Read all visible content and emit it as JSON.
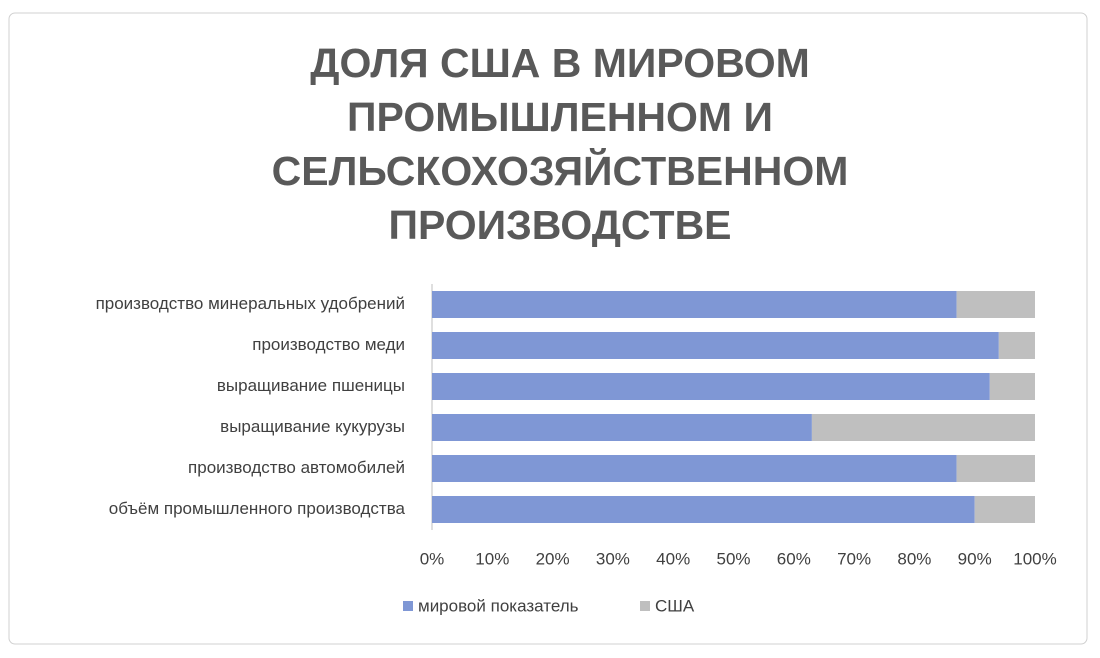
{
  "chart_data": {
    "type": "stacked_percent_barh",
    "title": "ДОЛЯ США В МИРОВОМ ПРОМЫШЛЕННОМ И СЕЛЬСКОХОЗЯЙСТВЕННОМ ПРОИЗВОДСТВЕ",
    "categories": [
      "производство минеральных удобрений",
      "производство меди",
      "выращивание пшеницы",
      "выращивание кукурузы",
      "производство автомобилей",
      "объём промышленного производства"
    ],
    "series": [
      {
        "name": "мировой показатель",
        "color": "#7f97d5",
        "values": [
          87,
          94,
          92.5,
          63,
          87,
          90
        ]
      },
      {
        "name": "США",
        "color": "#bfbfbf",
        "values": [
          13,
          6,
          7.5,
          37,
          13,
          10
        ]
      }
    ],
    "xlim": [
      0,
      100
    ],
    "xticks": [
      {
        "value": 0,
        "label": "0%"
      },
      {
        "value": 10,
        "label": "10%"
      },
      {
        "value": 20,
        "label": "20%"
      },
      {
        "value": 30,
        "label": "30%"
      },
      {
        "value": 40,
        "label": "40%"
      },
      {
        "value": 50,
        "label": "50%"
      },
      {
        "value": 60,
        "label": "60%"
      },
      {
        "value": 70,
        "label": "70%"
      },
      {
        "value": 80,
        "label": "80%"
      },
      {
        "value": 90,
        "label": "90%"
      },
      {
        "value": 100,
        "label": "100%"
      }
    ],
    "grid": false,
    "legend": "bottom"
  }
}
